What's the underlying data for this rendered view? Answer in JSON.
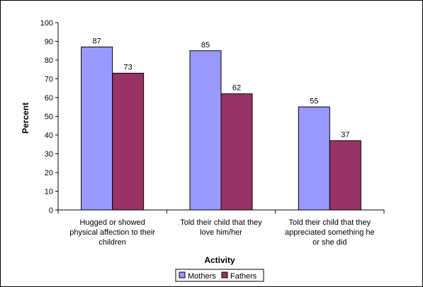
{
  "chart_data": {
    "type": "bar",
    "title": "",
    "xlabel": "Activity",
    "ylabel": "Percent",
    "ylim": [
      0,
      100
    ],
    "yticks": [
      0,
      10,
      20,
      30,
      40,
      50,
      60,
      70,
      80,
      90,
      100
    ],
    "grid": false,
    "legend_position": "bottom",
    "categories": [
      [
        "Hugged or showed",
        "physical affection to their",
        "children"
      ],
      [
        "Told their child that they",
        "love him/her"
      ],
      [
        "Told their child that they",
        "appreciated something he",
        "or she did"
      ]
    ],
    "series": [
      {
        "name": "Mothers",
        "color": "#9999ff",
        "values": [
          87,
          85,
          55
        ]
      },
      {
        "name": "Fathers",
        "color": "#993366",
        "values": [
          73,
          62,
          37
        ]
      }
    ]
  }
}
